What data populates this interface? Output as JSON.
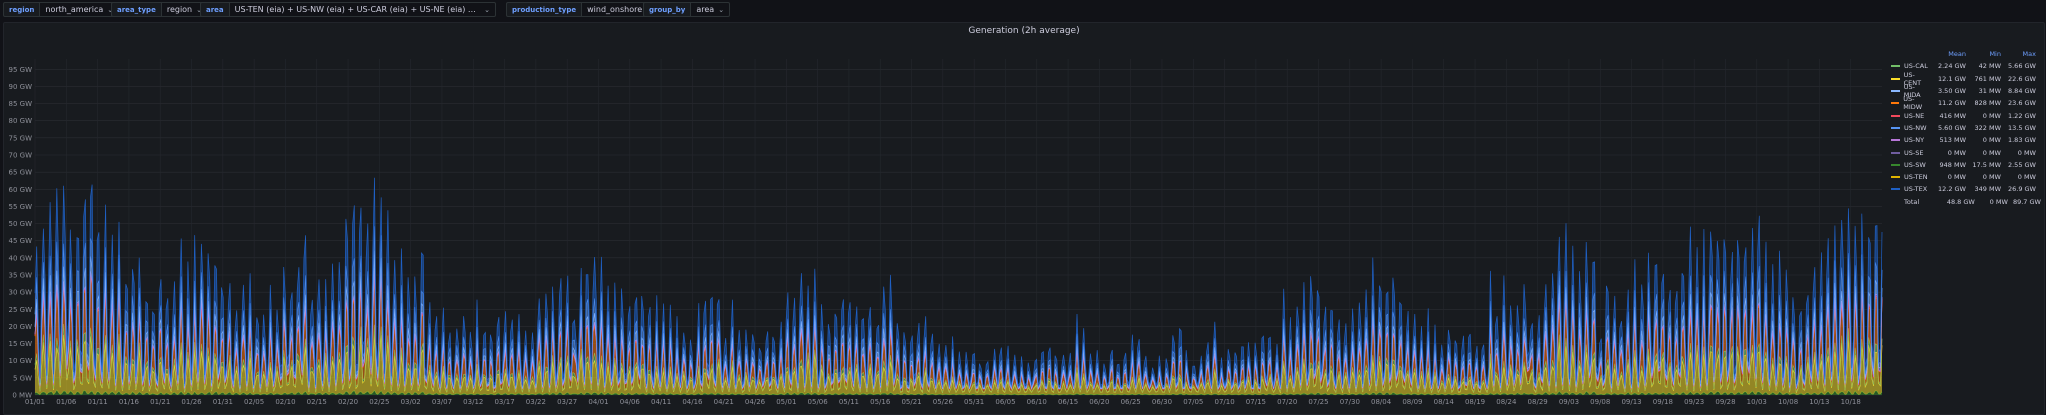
{
  "variables": [
    {
      "label": "region",
      "value": "north_america"
    },
    {
      "label": "area_type",
      "value": "region"
    },
    {
      "label": "area",
      "value": "US-TEN (eia) + US-NW (eia) + US-CAR (eia) + US-NE (eia) + US-SW (eia) + ..."
    },
    {
      "label": "production_type",
      "value": "wind_onshore"
    },
    {
      "label": "group_by",
      "value": "area"
    }
  ],
  "panel": {
    "title": "Generation (2h average)"
  },
  "legend": {
    "headers": {
      "mean": "Mean",
      "min": "Min",
      "max": "Max"
    },
    "rows": [
      {
        "name": "US-CAL",
        "color": "#73bf69",
        "mean": "2.24 GW",
        "min": "42 MW",
        "max": "5.66 GW"
      },
      {
        "name": "US-CENT",
        "color": "#fade2a",
        "mean": "12.1 GW",
        "min": "761 MW",
        "max": "22.6 GW"
      },
      {
        "name": "US-MIDA",
        "color": "#8ab8ff",
        "mean": "3.50 GW",
        "min": "31 MW",
        "max": "8.84 GW"
      },
      {
        "name": "US-MIDW",
        "color": "#ff780a",
        "mean": "11.2 GW",
        "min": "828 MW",
        "max": "23.6 GW"
      },
      {
        "name": "US-NE",
        "color": "#f2495c",
        "mean": "416 MW",
        "min": "0 MW",
        "max": "1.22 GW"
      },
      {
        "name": "US-NW",
        "color": "#5794f2",
        "mean": "5.60 GW",
        "min": "322 MW",
        "max": "13.5 GW"
      },
      {
        "name": "US-NY",
        "color": "#b877d9",
        "mean": "513 MW",
        "min": "0 MW",
        "max": "1.83 GW"
      },
      {
        "name": "US-SE",
        "color": "#705da0",
        "mean": "0 MW",
        "min": "0 MW",
        "max": "0 MW"
      },
      {
        "name": "US-SW",
        "color": "#37872d",
        "mean": "948 MW",
        "min": "17.5 MW",
        "max": "2.55 GW"
      },
      {
        "name": "US-TEN",
        "color": "#e0b400",
        "mean": "0 MW",
        "min": "0 MW",
        "max": "0 MW"
      },
      {
        "name": "US-TEX",
        "color": "#1f60c4",
        "mean": "12.2 GW",
        "min": "349 MW",
        "max": "26.9 GW"
      }
    ],
    "total": {
      "name": "Total",
      "mean": "48.8 GW",
      "min": "0 MW",
      "max": "89.7 GW"
    }
  },
  "chart_data": {
    "type": "area",
    "stacked": true,
    "title": "Generation (2h average)",
    "y_unit": "GW",
    "ylim": [
      0,
      98
    ],
    "y_ticks": [
      0,
      5,
      10,
      15,
      20,
      25,
      30,
      35,
      40,
      45,
      50,
      55,
      60,
      65,
      70,
      75,
      80,
      85,
      90,
      95
    ],
    "y_tick_labels": [
      "0 MW",
      "5 GW",
      "10 GW",
      "15 GW",
      "20 GW",
      "25 GW",
      "30 GW",
      "35 GW",
      "40 GW",
      "45 GW",
      "50 GW",
      "55 GW",
      "60 GW",
      "65 GW",
      "70 GW",
      "75 GW",
      "80 GW",
      "85 GW",
      "90 GW",
      "95 GW"
    ],
    "x_tick_labels": [
      "01/01",
      "01/06",
      "01/11",
      "01/16",
      "01/21",
      "01/26",
      "01/31",
      "02/05",
      "02/10",
      "02/15",
      "02/20",
      "02/25",
      "03/02",
      "03/07",
      "03/12",
      "03/17",
      "03/22",
      "03/27",
      "04/01",
      "04/06",
      "04/11",
      "04/16",
      "04/21",
      "04/26",
      "05/01",
      "05/06",
      "05/11",
      "05/16",
      "05/21",
      "05/26",
      "05/31",
      "06/05",
      "06/10",
      "06/15",
      "06/20",
      "06/25",
      "06/30",
      "07/05",
      "07/10",
      "07/15",
      "07/20",
      "07/25",
      "07/30",
      "08/04",
      "08/09",
      "08/14",
      "08/19",
      "08/24",
      "08/29",
      "09/03",
      "09/08",
      "09/13",
      "09/18",
      "09/23",
      "09/28",
      "10/03",
      "10/08",
      "10/13",
      "10/18"
    ],
    "x_days": [
      0,
      5,
      10,
      15,
      20,
      25,
      30,
      35,
      40,
      45,
      50,
      55,
      60,
      65,
      70,
      75,
      80,
      85,
      90,
      95,
      100,
      105,
      110,
      115,
      120,
      125,
      130,
      135,
      140,
      145,
      150,
      155,
      160,
      165,
      170,
      175,
      180,
      185,
      190,
      195,
      200,
      205,
      210,
      215,
      220,
      225,
      230,
      235,
      240,
      245,
      250,
      255,
      260,
      265,
      270,
      275,
      280,
      285,
      290
    ],
    "x_range_days": [
      0,
      295
    ],
    "legend_position": "right",
    "grid": true,
    "series": [
      {
        "name": "US-SW",
        "color": "#37872d",
        "mean_gw": 0.948,
        "min_gw": 0.0175,
        "max_gw": 2.55
      },
      {
        "name": "US-CENT",
        "color": "#fade2a",
        "mean_gw": 12.1,
        "min_gw": 0.761,
        "max_gw": 22.6
      },
      {
        "name": "US-CAL",
        "color": "#73bf69",
        "mean_gw": 2.24,
        "min_gw": 0.042,
        "max_gw": 5.66
      },
      {
        "name": "US-MIDW",
        "color": "#ff780a",
        "mean_gw": 11.2,
        "min_gw": 0.828,
        "max_gw": 23.6
      },
      {
        "name": "US-NE",
        "color": "#f2495c",
        "mean_gw": 0.416,
        "min_gw": 0,
        "max_gw": 1.22
      },
      {
        "name": "US-NY",
        "color": "#b877d9",
        "mean_gw": 0.513,
        "min_gw": 0,
        "max_gw": 1.83
      },
      {
        "name": "US-MIDA",
        "color": "#8ab8ff",
        "mean_gw": 3.5,
        "min_gw": 0.031,
        "max_gw": 8.84
      },
      {
        "name": "US-NW",
        "color": "#5794f2",
        "mean_gw": 5.6,
        "min_gw": 0.322,
        "max_gw": 13.5
      },
      {
        "name": "US-TEX",
        "color": "#1f60c4",
        "mean_gw": 12.2,
        "min_gw": 0.349,
        "max_gw": 26.9
      }
    ]
  }
}
